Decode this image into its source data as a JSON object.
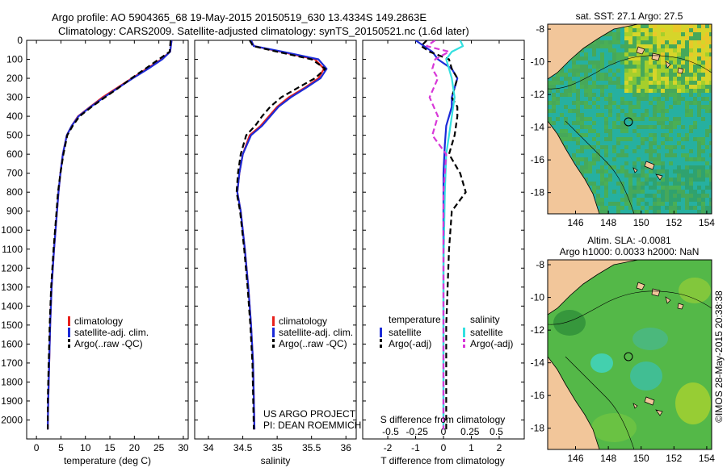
{
  "header": {
    "line1": "Argo profile: AO 5904365_68 19-May-2015 20150519_630 13.4334S 149.2863E",
    "line2": "Climatology: CARS2009. Satellite-adjusted climatology: synTS_20150521.nc (1.6d later)"
  },
  "colors": {
    "climatology": "#e8211c",
    "satellite": "#1c2bd8",
    "argo": "#000000",
    "sal_satellite": "#33e0e0",
    "sal_argo": "#d838d8",
    "land": "#f2c69a"
  },
  "credits": {
    "project": "US ARGO PROJECT",
    "pi": "PI: DEAN ROEMMICH"
  },
  "stamp": "©IMOS 28-May-2015 20:38:38",
  "chart_data": [
    {
      "type": "line",
      "id": "temperature",
      "xlabel": "temperature (deg C)",
      "ylabel": "",
      "xlim": [
        -2,
        31
      ],
      "ylim": [
        2100,
        0
      ],
      "xticks": [
        0,
        5,
        10,
        15,
        20,
        25,
        30
      ],
      "xtick_labels": [
        "0",
        "5",
        "10",
        "15",
        "20",
        "25",
        "30"
      ],
      "yticks": [
        0,
        100,
        200,
        300,
        400,
        500,
        600,
        700,
        800,
        900,
        1000,
        1100,
        1200,
        1300,
        1400,
        1500,
        1600,
        1700,
        1800,
        1900,
        2000
      ],
      "ytick_labels": [
        "0",
        "100",
        "200",
        "300",
        "400",
        "500",
        "600",
        "700",
        "800",
        "900",
        "1000",
        "1100",
        "1200",
        "1300",
        "1400",
        "1500",
        "1600",
        "1700",
        "1800",
        "1900",
        "2000"
      ],
      "legend": [
        "climatology",
        "satellite-adj. clim.",
        "Argo(..raw -QC)"
      ],
      "series": [
        {
          "name": "climatology",
          "color": "climatology",
          "dash": false,
          "x": [
            27.6,
            27.3,
            25.5,
            22.5,
            19.5,
            16.5,
            13.5,
            11.0,
            8.5,
            7.2,
            6.2,
            5.4,
            4.9,
            4.5,
            4.2,
            3.6,
            3.1,
            2.8,
            2.6,
            2.4,
            2.3
          ],
          "y": [
            0,
            60,
            100,
            150,
            200,
            250,
            300,
            350,
            400,
            450,
            500,
            600,
            700,
            800,
            900,
            1100,
            1300,
            1500,
            1700,
            1900,
            2050
          ]
        },
        {
          "name": "satellite-adj. clim.",
          "color": "satellite",
          "dash": false,
          "x": [
            27.6,
            27.3,
            25.7,
            22.8,
            19.7,
            16.7,
            13.8,
            11.1,
            8.6,
            7.2,
            6.2,
            5.4,
            4.9,
            4.5,
            4.2,
            3.6,
            3.1,
            2.8,
            2.6,
            2.4,
            2.3
          ],
          "y": [
            0,
            60,
            100,
            150,
            200,
            250,
            300,
            350,
            400,
            450,
            500,
            600,
            700,
            800,
            900,
            1100,
            1300,
            1500,
            1700,
            1900,
            2050
          ]
        },
        {
          "name": "Argo(..raw -QC)",
          "color": "argo",
          "dash": true,
          "x": [
            27.4,
            27.2,
            25.0,
            22.2,
            19.4,
            16.8,
            14.0,
            11.3,
            8.8,
            7.4,
            6.3,
            5.5,
            4.9,
            4.4,
            4.1,
            3.5,
            3.0,
            2.7,
            2.5,
            2.3,
            2.3
          ],
          "y": [
            0,
            60,
            100,
            150,
            200,
            250,
            300,
            350,
            400,
            450,
            500,
            600,
            700,
            800,
            900,
            1100,
            1300,
            1500,
            1700,
            1900,
            2050
          ]
        }
      ]
    },
    {
      "type": "line",
      "id": "salinity",
      "xlabel": "salinity",
      "xlim": [
        33.8,
        36.15
      ],
      "ylim": [
        2100,
        0
      ],
      "xticks": [
        34,
        34.5,
        35,
        35.5,
        36
      ],
      "xtick_labels": [
        "34",
        "34.5",
        "35",
        "35.5",
        "36"
      ],
      "legend": [
        "climatology",
        "satellite-adj. clim.",
        "Argo(..raw -QC)"
      ],
      "series": [
        {
          "name": "climatology",
          "color": "climatology",
          "dash": false,
          "x": [
            34.62,
            34.66,
            35.05,
            35.55,
            35.68,
            35.6,
            35.4,
            35.17,
            35.0,
            34.88,
            34.76,
            34.6,
            34.5,
            34.45,
            34.42,
            34.47,
            34.53,
            34.58,
            34.62,
            34.65,
            34.67
          ],
          "y": [
            0,
            30,
            60,
            100,
            150,
            200,
            250,
            300,
            350,
            400,
            450,
            500,
            600,
            700,
            800,
            900,
            1100,
            1300,
            1500,
            1700,
            2050
          ]
        },
        {
          "name": "satellite-adj. clim.",
          "color": "satellite",
          "dash": false,
          "x": [
            34.62,
            34.66,
            35.08,
            35.6,
            35.72,
            35.63,
            35.42,
            35.2,
            35.02,
            34.9,
            34.78,
            34.62,
            34.5,
            34.45,
            34.42,
            34.47,
            34.53,
            34.58,
            34.62,
            34.65,
            34.67
          ],
          "y": [
            0,
            30,
            60,
            100,
            150,
            200,
            250,
            300,
            350,
            400,
            450,
            500,
            600,
            700,
            800,
            900,
            1100,
            1300,
            1500,
            1700,
            2050
          ]
        },
        {
          "name": "Argo(..raw -QC)",
          "color": "argo",
          "dash": true,
          "x": [
            34.6,
            34.65,
            35.0,
            35.5,
            35.7,
            35.55,
            35.3,
            35.06,
            34.9,
            34.78,
            34.68,
            34.55,
            34.47,
            34.43,
            34.41,
            34.46,
            34.52,
            34.57,
            34.61,
            34.64,
            34.66
          ],
          "y": [
            0,
            30,
            60,
            100,
            150,
            200,
            250,
            300,
            350,
            400,
            450,
            500,
            600,
            700,
            800,
            900,
            1100,
            1300,
            1500,
            1700,
            2050
          ]
        }
      ]
    },
    {
      "type": "line",
      "id": "difference",
      "xlabel": "T difference from climatology",
      "xlabel_top": "S difference from climatology",
      "xlim": [
        -2.9,
        2.9
      ],
      "ylim": [
        2100,
        0
      ],
      "xticks": [
        -2,
        -1,
        0,
        1,
        2
      ],
      "xtick_labels": [
        "-2",
        "-1",
        "0",
        "1",
        "2"
      ],
      "s_ticks_pos": [
        -1.9,
        -0.95,
        0,
        0.95,
        1.9
      ],
      "s_tick_labels": [
        "-0.5",
        "-0.25",
        "0",
        "0.25",
        "0.5"
      ],
      "legend_left_title": "temperature",
      "legend_right_title": "salinity",
      "legend_left": [
        "satellite",
        "Argo(-adj)"
      ],
      "legend_right": [
        "satellite",
        "Argo(-adj)"
      ],
      "series": [
        {
          "name": "T satellite",
          "color": "satellite",
          "dash": false,
          "x": [
            -1.0,
            -0.7,
            -0.4,
            -0.2,
            0.3,
            0.5,
            0.4,
            0.3,
            0.3,
            0.2,
            0.1,
            0.05,
            0,
            0,
            0
          ],
          "y": [
            0,
            30,
            60,
            100,
            150,
            200,
            250,
            300,
            350,
            400,
            450,
            550,
            700,
            1000,
            2050
          ]
        },
        {
          "name": "T Argo(-adj)",
          "color": "argo",
          "dash": true,
          "x": [
            -0.6,
            -0.8,
            -0.5,
            0.2,
            0.3,
            0.5,
            0.4,
            0.3,
            0.5,
            0.5,
            0.4,
            0.2,
            0.6,
            0.8,
            0.3,
            0.2,
            0.1,
            0.1
          ],
          "y": [
            0,
            30,
            60,
            100,
            150,
            200,
            250,
            300,
            350,
            400,
            500,
            600,
            700,
            800,
            900,
            1100,
            1500,
            2050
          ]
        },
        {
          "name": "S satellite",
          "color": "sal_satellite",
          "dash": false,
          "x": [
            0.6,
            0.7,
            0.3,
            0.1,
            0.2,
            0.3,
            0.4,
            0.3,
            0.2,
            0.1,
            0.05,
            0,
            0
          ],
          "y": [
            0,
            30,
            60,
            100,
            150,
            200,
            300,
            400,
            500,
            600,
            800,
            1200,
            2050
          ]
        },
        {
          "name": "S Argo(-adj)",
          "color": "sal_argo",
          "dash": true,
          "x": [
            -0.3,
            -0.6,
            0.2,
            -0.3,
            -0.4,
            -0.2,
            -0.5,
            -0.2,
            -0.4,
            0.1,
            0,
            0,
            0,
            0
          ],
          "y": [
            0,
            30,
            60,
            100,
            150,
            200,
            300,
            400,
            500,
            600,
            800,
            1000,
            1500,
            2050
          ]
        }
      ]
    },
    {
      "type": "heatmap",
      "id": "sst_map",
      "title": "sat. SST: 27.1  Argo: 27.5",
      "xlim": [
        144.3,
        154.3
      ],
      "ylim": [
        -19.3,
        -7.7
      ],
      "xticks": [
        146,
        148,
        150,
        152,
        154
      ],
      "xtick_labels": [
        "146",
        "148",
        "150",
        "152",
        "154"
      ],
      "yticks": [
        -8,
        -10,
        -12,
        -14,
        -16,
        -18
      ],
      "ytick_labels": [
        "-8",
        "-10",
        "-12",
        "-14",
        "-16",
        "-18"
      ],
      "argo_position": [
        149.29,
        -13.43
      ]
    },
    {
      "type": "heatmap",
      "id": "sla_map",
      "title": "Altim. SLA: -0.0081",
      "subtitle": "Argo h1000: 0.0033 h2000: NaN",
      "xlim": [
        144.3,
        154.3
      ],
      "ylim": [
        -19.3,
        -7.7
      ],
      "xticks": [
        146,
        148,
        150,
        152,
        154
      ],
      "xtick_labels": [
        "146",
        "148",
        "150",
        "152",
        "154"
      ],
      "yticks": [
        -8,
        -10,
        -12,
        -14,
        -16,
        -18
      ],
      "ytick_labels": [
        "-8",
        "-10",
        "-12",
        "-14",
        "-16",
        "-18"
      ],
      "argo_position": [
        149.29,
        -13.43
      ]
    }
  ]
}
